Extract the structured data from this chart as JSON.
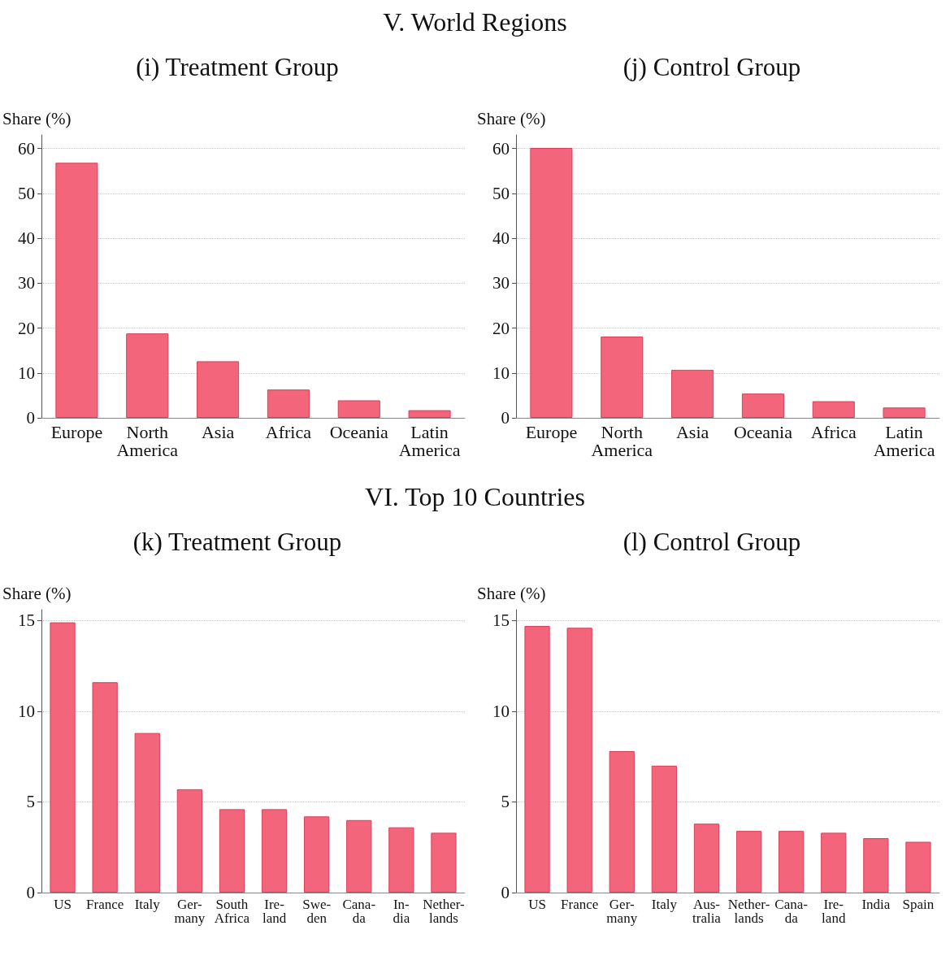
{
  "chart_data": [
    {
      "type": "bar",
      "title": "(i) Treatment Group",
      "annotations": [
        "V. World Regions"
      ],
      "ylabel": "Share (%)",
      "categories": [
        "Europe",
        "North\nAmerica",
        "Asia",
        "Africa",
        "Oceania",
        "Latin\nAmerica"
      ],
      "values": [
        56.8,
        18.8,
        12.6,
        6.3,
        3.9,
        1.7
      ],
      "color": "#f2657b",
      "ylim": [
        0,
        63
      ],
      "yticks": [
        0,
        10,
        20,
        30,
        40,
        50,
        60
      ],
      "grid": "y"
    },
    {
      "type": "bar",
      "title": "(j) Control Group",
      "ylabel": "Share (%)",
      "categories": [
        "Europe",
        "North\nAmerica",
        "Asia",
        "Oceania",
        "Africa",
        "Latin\nAmerica"
      ],
      "values": [
        60.1,
        18.1,
        10.7,
        5.4,
        3.7,
        2.3
      ],
      "color": "#f2657b",
      "ylim": [
        0,
        63
      ],
      "yticks": [
        0,
        10,
        20,
        30,
        40,
        50,
        60
      ],
      "grid": "y"
    },
    {
      "type": "bar",
      "title": "(k) Treatment Group",
      "annotations": [
        "VI. Top 10 Countries"
      ],
      "ylabel": "Share (%)",
      "categories": [
        "US",
        "France",
        "Italy",
        "Ger-\nmany",
        "South\nAfrica",
        "Ire-\nland",
        "Swe-\nden",
        "Cana-\nda",
        "In-\ndia",
        "Nether-\nlands"
      ],
      "values": [
        14.9,
        11.6,
        8.8,
        5.7,
        4.6,
        4.6,
        4.2,
        4.0,
        3.6,
        3.3
      ],
      "color": "#f2657b",
      "ylim": [
        0,
        15.6
      ],
      "yticks": [
        0,
        5,
        10,
        15
      ],
      "grid": "y"
    },
    {
      "type": "bar",
      "title": "(l) Control Group",
      "ylabel": "Share (%)",
      "categories": [
        "US",
        "France",
        "Ger-\nmany",
        "Italy",
        "Aus-\ntralia",
        "Nether-\nlands",
        "Cana-\nda",
        "Ire-\nland",
        "India",
        "Spain"
      ],
      "values": [
        14.7,
        14.6,
        7.8,
        7.0,
        3.8,
        3.4,
        3.4,
        3.3,
        3.0,
        2.8
      ],
      "color": "#f2657b",
      "ylim": [
        0,
        15.6
      ],
      "yticks": [
        0,
        5,
        10,
        15
      ],
      "grid": "y"
    }
  ]
}
